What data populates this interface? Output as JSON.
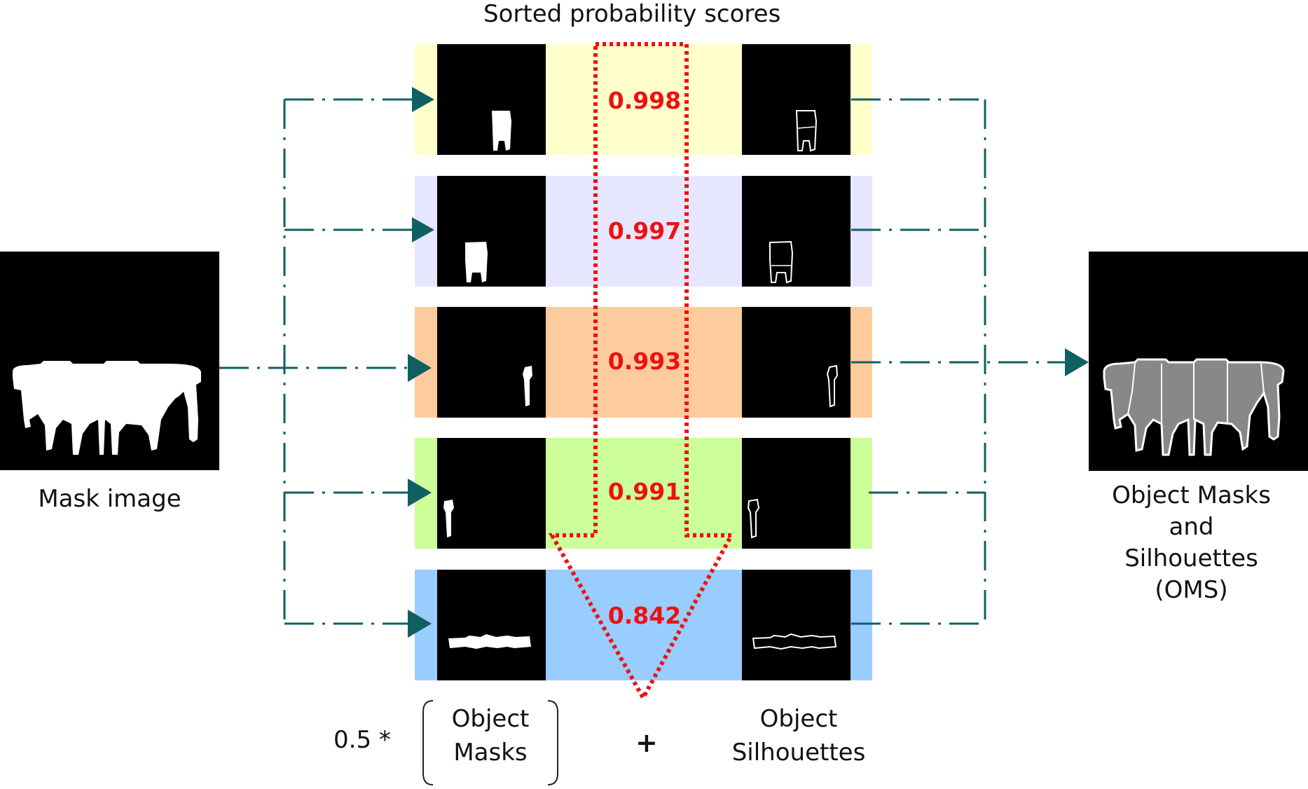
{
  "title": "Sorted probability scores",
  "mask_image_label": "Mask image",
  "oms_label": [
    "Object Masks",
    "and",
    "Silhouettes",
    "(OMS)"
  ],
  "rows": [
    {
      "score": "0.998",
      "color": "#ffffcc"
    },
    {
      "score": "0.997",
      "color": "#e6e6ff"
    },
    {
      "score": "0.993",
      "color": "#fdcb9c"
    },
    {
      "score": "0.991",
      "color": "#ccff99"
    },
    {
      "score": "0.842",
      "color": "#99ccff"
    }
  ],
  "formula": {
    "coefficient": "0.5 *",
    "masks_label": [
      "Object",
      "Masks"
    ],
    "plus": "+",
    "silhouettes_label": [
      "Object",
      "Silhouettes"
    ]
  },
  "colors": {
    "arrow": "#0f6060",
    "dotted": "#ee1111"
  }
}
